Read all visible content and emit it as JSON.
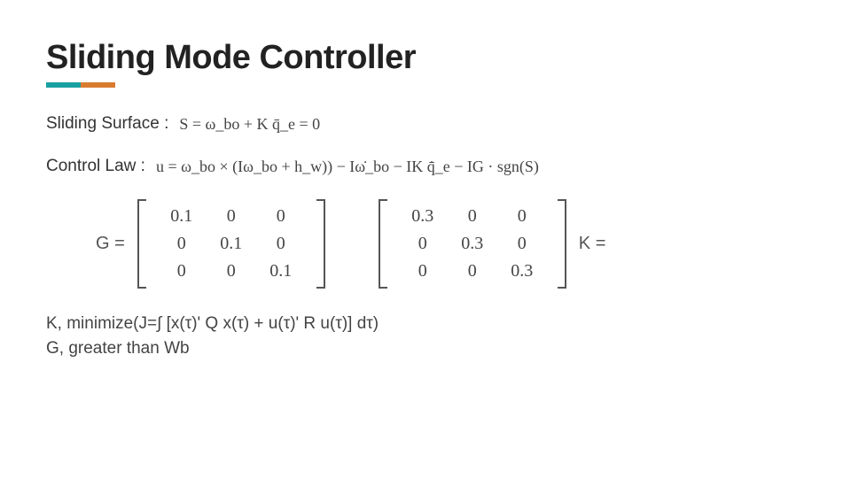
{
  "title": "Sliding Mode Controller",
  "underline_colors": {
    "seg1": "#1aa0a0",
    "seg2": "#d97b2e"
  },
  "sliding_surface": {
    "label": "Sliding Surface :",
    "formula": "S = ω_bo + K q̄_e = 0"
  },
  "control_law": {
    "label": "Control Law :",
    "formula": "u = ω_bo × (Iω_bo + h_w)) − Iω̇_bo − IK q̄̇_e − IG · sgn(S)"
  },
  "matrices": {
    "G": {
      "label": "G =",
      "rows": [
        [
          "0.1",
          "0",
          "0"
        ],
        [
          "0",
          "0.1",
          "0"
        ],
        [
          "0",
          "0",
          "0.1"
        ]
      ]
    },
    "K": {
      "label": "K =",
      "rows": [
        [
          "0.3",
          "0",
          "0"
        ],
        [
          "0",
          "0.3",
          "0"
        ],
        [
          "0",
          "0",
          "0.3"
        ]
      ]
    }
  },
  "notes": {
    "line1": "K, minimize(J=∫ [x(τ)' Q x(τ) + u(τ)' R u(τ)] dτ)",
    "line2": "G, greater than Wb"
  },
  "style": {
    "title_fontsize": 38,
    "body_fontsize": 19,
    "matrix_fontsize": 20,
    "title_color": "#222222",
    "text_color": "#333333",
    "matrix_color": "#444444",
    "background_color": "#ffffff"
  }
}
